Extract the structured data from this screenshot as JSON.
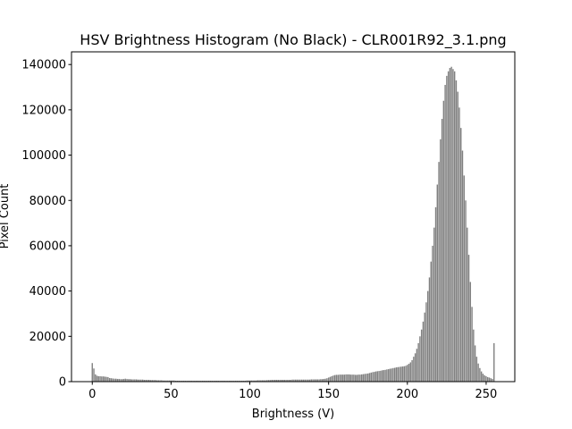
{
  "chart_data": {
    "type": "bar",
    "title": "HSV Brightness Histogram (No Black) - CLR001R92_3.1.png",
    "x_label": "Brightness (V)",
    "y_label": "Pixel Count",
    "color": "#808080",
    "bar_width": 0.8,
    "x": [
      0,
      1,
      2,
      3,
      4,
      5,
      6,
      7,
      8,
      9,
      10,
      11,
      12,
      13,
      14,
      15,
      16,
      17,
      18,
      19,
      20,
      21,
      22,
      23,
      24,
      25,
      26,
      27,
      28,
      29,
      30,
      31,
      32,
      33,
      34,
      35,
      36,
      37,
      38,
      39,
      40,
      41,
      42,
      43,
      44,
      45,
      46,
      47,
      48,
      49,
      50,
      51,
      52,
      53,
      54,
      55,
      56,
      57,
      58,
      59,
      60,
      61,
      62,
      63,
      64,
      65,
      66,
      67,
      68,
      69,
      70,
      71,
      72,
      73,
      74,
      75,
      76,
      77,
      78,
      79,
      80,
      81,
      82,
      83,
      84,
      85,
      86,
      87,
      88,
      89,
      90,
      91,
      92,
      93,
      94,
      95,
      96,
      97,
      98,
      99,
      100,
      101,
      102,
      103,
      104,
      105,
      106,
      107,
      108,
      109,
      110,
      111,
      112,
      113,
      114,
      115,
      116,
      117,
      118,
      119,
      120,
      121,
      122,
      123,
      124,
      125,
      126,
      127,
      128,
      129,
      130,
      131,
      132,
      133,
      134,
      135,
      136,
      137,
      138,
      139,
      140,
      141,
      142,
      143,
      144,
      145,
      146,
      147,
      148,
      149,
      150,
      151,
      152,
      153,
      154,
      155,
      156,
      157,
      158,
      159,
      160,
      161,
      162,
      163,
      164,
      165,
      166,
      167,
      168,
      169,
      170,
      171,
      172,
      173,
      174,
      175,
      176,
      177,
      178,
      179,
      180,
      181,
      182,
      183,
      184,
      185,
      186,
      187,
      188,
      189,
      190,
      191,
      192,
      193,
      194,
      195,
      196,
      197,
      198,
      199,
      200,
      201,
      202,
      203,
      204,
      205,
      206,
      207,
      208,
      209,
      210,
      211,
      212,
      213,
      214,
      215,
      216,
      217,
      218,
      219,
      220,
      221,
      222,
      223,
      224,
      225,
      226,
      227,
      228,
      229,
      230,
      231,
      232,
      233,
      234,
      235,
      236,
      237,
      238,
      239,
      240,
      241,
      242,
      243,
      244,
      245,
      246,
      247,
      248,
      249,
      250,
      251,
      252,
      253,
      254,
      255
    ],
    "values": [
      8200,
      5800,
      3200,
      2600,
      2400,
      2400,
      2300,
      2300,
      2200,
      2100,
      2000,
      1600,
      1500,
      1400,
      1300,
      1300,
      1200,
      1200,
      1100,
      1100,
      1200,
      1300,
      1200,
      1100,
      1100,
      1000,
      1000,
      1000,
      1000,
      900,
      900,
      900,
      900,
      800,
      800,
      800,
      800,
      700,
      700,
      700,
      700,
      600,
      600,
      600,
      600,
      500,
      500,
      500,
      500,
      500,
      500,
      500,
      500,
      400,
      400,
      400,
      400,
      400,
      400,
      400,
      400,
      400,
      400,
      400,
      400,
      400,
      400,
      400,
      400,
      400,
      400,
      400,
      400,
      400,
      400,
      400,
      400,
      400,
      400,
      400,
      400,
      400,
      400,
      400,
      400,
      400,
      400,
      400,
      400,
      400,
      400,
      400,
      400,
      400,
      400,
      400,
      400,
      400,
      500,
      500,
      500,
      500,
      500,
      500,
      500,
      600,
      600,
      600,
      600,
      600,
      600,
      700,
      700,
      700,
      800,
      800,
      800,
      800,
      800,
      800,
      800,
      800,
      800,
      800,
      800,
      800,
      800,
      900,
      900,
      900,
      900,
      900,
      900,
      900,
      900,
      900,
      900,
      900,
      900,
      1000,
      1000,
      1000,
      1000,
      1000,
      1000,
      1100,
      1100,
      1200,
      1300,
      1500,
      1800,
      2100,
      2400,
      2700,
      2900,
      3000,
      3000,
      3100,
      3100,
      3100,
      3100,
      3200,
      3200,
      3200,
      3100,
      3100,
      3100,
      3000,
      3000,
      3100,
      3100,
      3200,
      3300,
      3400,
      3500,
      3600,
      3800,
      4000,
      4200,
      4300,
      4500,
      4600,
      4700,
      4800,
      5000,
      5100,
      5200,
      5400,
      5500,
      5700,
      5800,
      6000,
      6100,
      6300,
      6400,
      6500,
      6600,
      6700,
      6800,
      7000,
      7400,
      7900,
      8500,
      9500,
      11000,
      12500,
      14500,
      17000,
      20000,
      23000,
      26500,
      30500,
      35000,
      40000,
      46000,
      53000,
      60000,
      68000,
      77000,
      87000,
      97000,
      107000,
      116000,
      124000,
      131000,
      135000,
      137000,
      138500,
      139000,
      138000,
      137000,
      133000,
      128000,
      121000,
      112000,
      102000,
      91000,
      80000,
      68000,
      56000,
      44000,
      33000,
      23000,
      16000,
      11000,
      8000,
      6000,
      4500,
      3500,
      2800,
      2400,
      2000,
      1800,
      1500,
      1200,
      17000
    ],
    "xlim": [
      -13.19,
      268.19
    ],
    "xticks": [
      0,
      50,
      100,
      150,
      200,
      250
    ],
    "ylim": [
      0,
      145600
    ],
    "yticks": [
      0,
      20000,
      40000,
      60000,
      80000,
      100000,
      120000,
      140000
    ],
    "grid": false
  }
}
